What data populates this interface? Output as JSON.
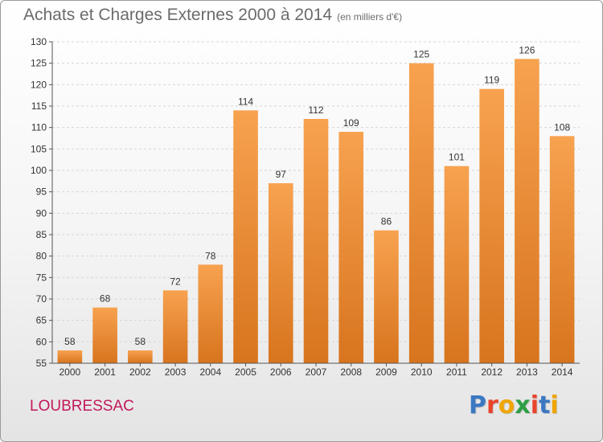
{
  "header": {
    "title": "Achats et Charges Externes 2000 à 2014",
    "subtitle": "(en milliers d'€)"
  },
  "footer": {
    "commune": "LOUBRESSAC",
    "logo_text": "Proxiti",
    "logo_colors": [
      "#3a78c2",
      "#e8452c",
      "#f0a500",
      "#2f9e44",
      "#e8452c",
      "#3a78c2",
      "#f0a500"
    ]
  },
  "chart_data": {
    "type": "bar",
    "title": "Achats et Charges Externes 2000 à 2014",
    "subtitle": "(en milliers d'€)",
    "xlabel": "",
    "ylabel": "",
    "categories": [
      "2000",
      "2001",
      "2002",
      "2003",
      "2004",
      "2005",
      "2006",
      "2007",
      "2008",
      "2009",
      "2010",
      "2011",
      "2012",
      "2013",
      "2014"
    ],
    "values": [
      58,
      68,
      58,
      72,
      78,
      114,
      97,
      112,
      109,
      86,
      125,
      101,
      119,
      126,
      108
    ],
    "ylim": [
      55,
      130
    ],
    "yticks": [
      55,
      60,
      65,
      70,
      75,
      80,
      85,
      90,
      95,
      100,
      105,
      110,
      115,
      120,
      125,
      130
    ],
    "grid": true,
    "legend": "none",
    "bar_color_top": "#f7a24f",
    "bar_color_bottom": "#d8741e"
  }
}
